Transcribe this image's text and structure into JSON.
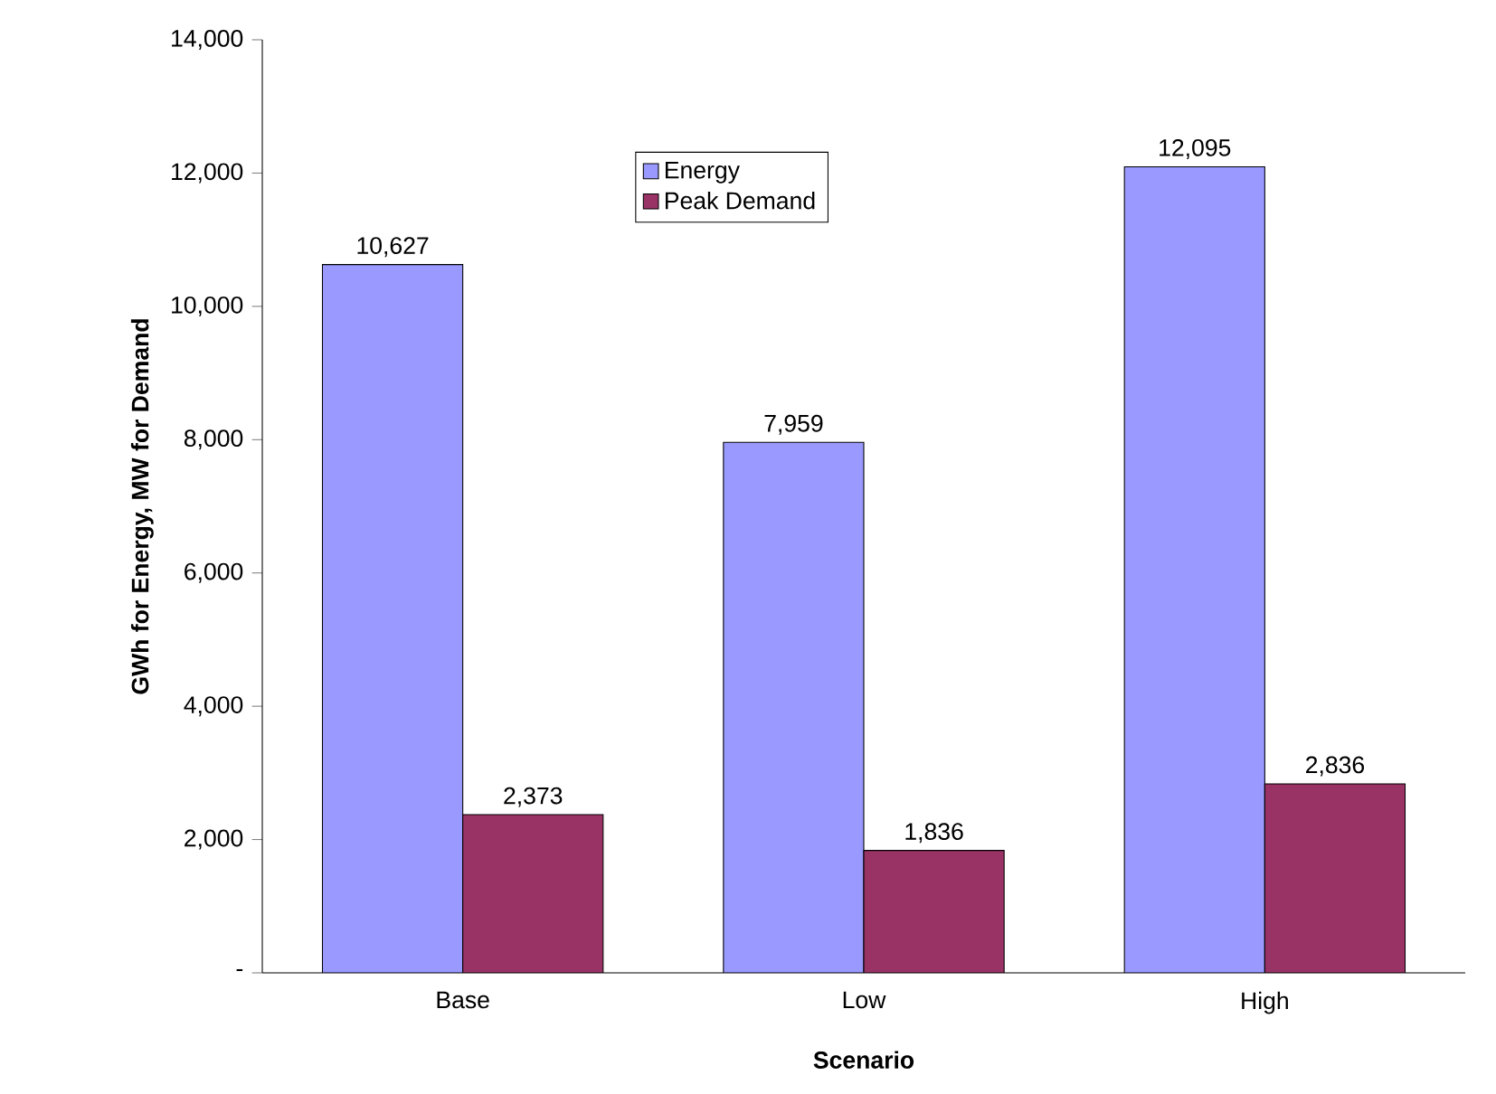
{
  "chart_data": {
    "type": "bar",
    "xlabel": "Scenario",
    "ylabel": "GWh for Energy, MW for Demand",
    "categories": [
      "Base",
      "Low",
      "High"
    ],
    "series": [
      {
        "name": "Energy",
        "color": "#9999ff",
        "values": [
          10627,
          7959,
          12095
        ],
        "value_labels": [
          "10,627",
          "7,959",
          "12,095"
        ]
      },
      {
        "name": "Peak Demand",
        "color": "#993366",
        "values": [
          2373,
          1836,
          2836
        ],
        "value_labels": [
          "2,373",
          "1,836",
          "2,836"
        ]
      }
    ],
    "ylim": [
      0,
      14000
    ],
    "yticks": [
      {
        "value": 0,
        "label": "-"
      },
      {
        "value": 2000,
        "label": "2,000"
      },
      {
        "value": 4000,
        "label": "4,000"
      },
      {
        "value": 6000,
        "label": "6,000"
      },
      {
        "value": 8000,
        "label": "8,000"
      },
      {
        "value": 10000,
        "label": "10,000"
      },
      {
        "value": 12000,
        "label": "12,000"
      },
      {
        "value": 14000,
        "label": "14,000"
      }
    ],
    "legend": "top",
    "grid": false
  }
}
